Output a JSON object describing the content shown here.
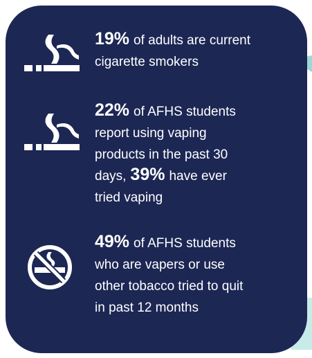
{
  "items": [
    {
      "lines": [
        [
          {
            "strong": "19%"
          },
          {
            "text": "of adults are current"
          }
        ],
        [
          {
            "text": "cigarette smokers"
          }
        ]
      ]
    },
    {
      "lines": [
        [
          {
            "strong": "22%"
          },
          {
            "text": "of AFHS students"
          }
        ],
        [
          {
            "text": "report using vaping"
          }
        ],
        [
          {
            "text": "products in the past 30"
          }
        ],
        [
          {
            "text": "days,"
          },
          {
            "strong": "39%"
          },
          {
            "text": "have ever"
          }
        ],
        [
          {
            "text": "tried vaping"
          }
        ]
      ]
    },
    {
      "lines": [
        [
          {
            "strong": "49%"
          },
          {
            "text": "of AFHS students"
          }
        ],
        [
          {
            "text": "who are vapers or use"
          }
        ],
        [
          {
            "text": "other tobacco tried to quit"
          }
        ],
        [
          {
            "text": "in past 12 months"
          }
        ]
      ]
    }
  ]
}
